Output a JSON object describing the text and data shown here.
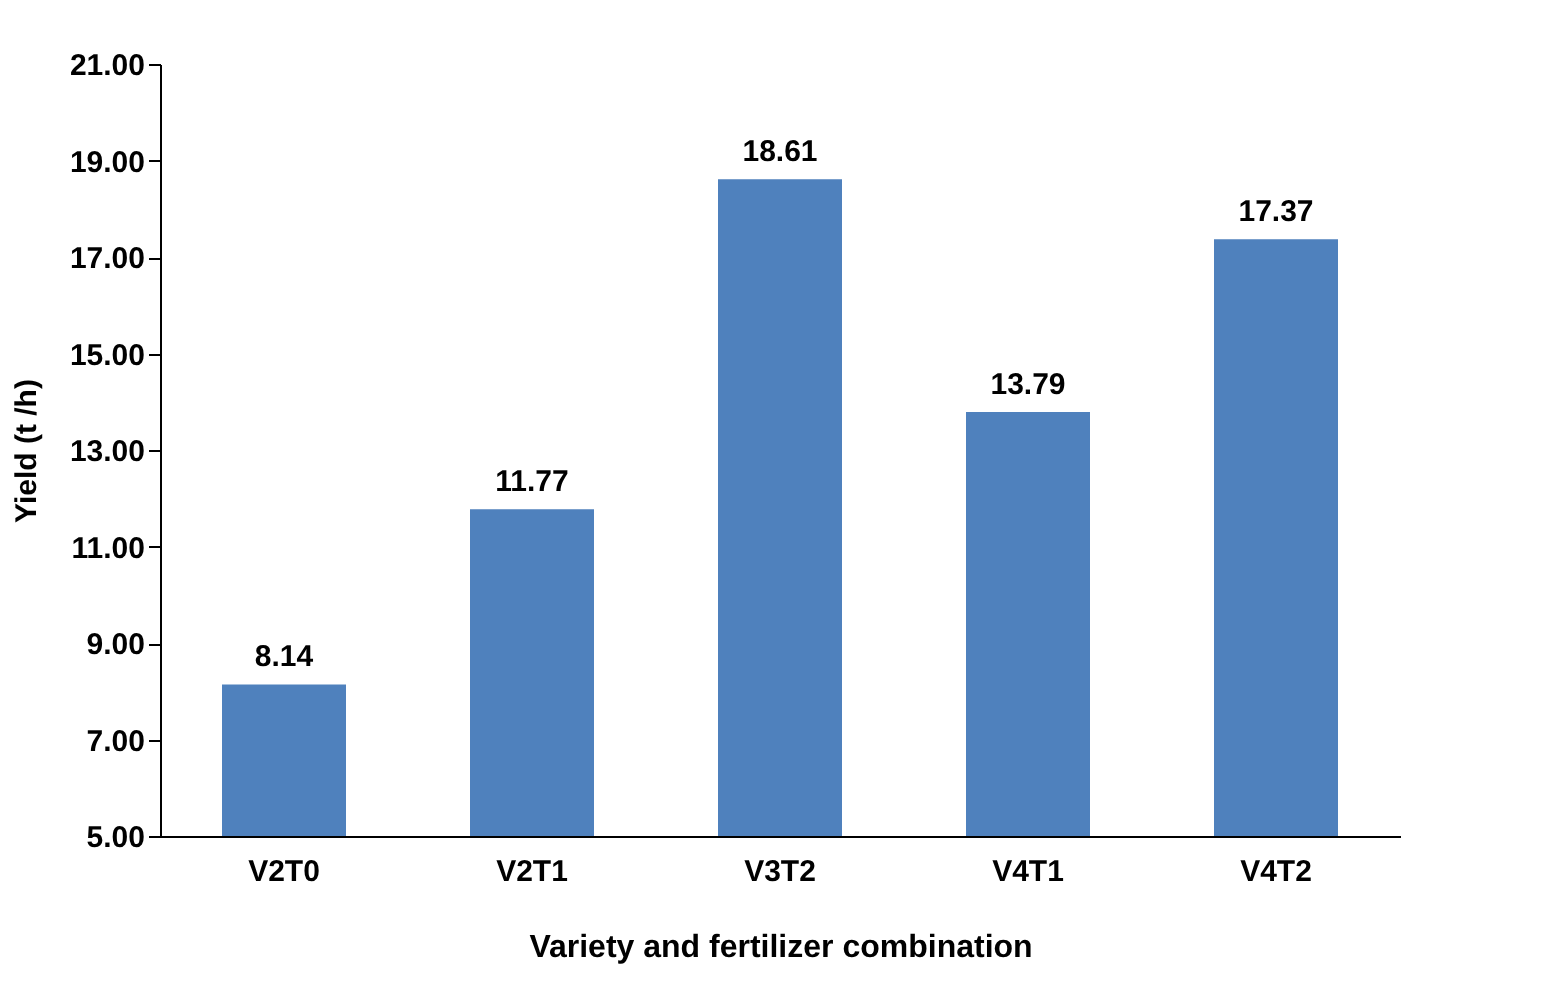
{
  "chart_data": {
    "type": "bar",
    "xlabel": "Variety and fertilizer combination",
    "ylabel": "Yield (t /h)",
    "categories": [
      "V2T0",
      "V2T1",
      "V3T2",
      "V4T1",
      "V4T2"
    ],
    "values": [
      8.14,
      11.77,
      18.61,
      13.79,
      17.37
    ],
    "color": "#4f81bd",
    "ylim": [
      5,
      21
    ],
    "yticks": [
      {
        "value": 5,
        "label": "5.00"
      },
      {
        "value": 7,
        "label": "7.00"
      },
      {
        "value": 9,
        "label": "9.00"
      },
      {
        "value": 11,
        "label": "11.00"
      },
      {
        "value": 13,
        "label": "13.00"
      },
      {
        "value": 15,
        "label": "15.00"
      },
      {
        "value": 17,
        "label": "17.00"
      },
      {
        "value": 19,
        "label": "19.00"
      },
      {
        "value": 21,
        "label": "21.00"
      }
    ],
    "data_labels": true,
    "grid": false
  }
}
